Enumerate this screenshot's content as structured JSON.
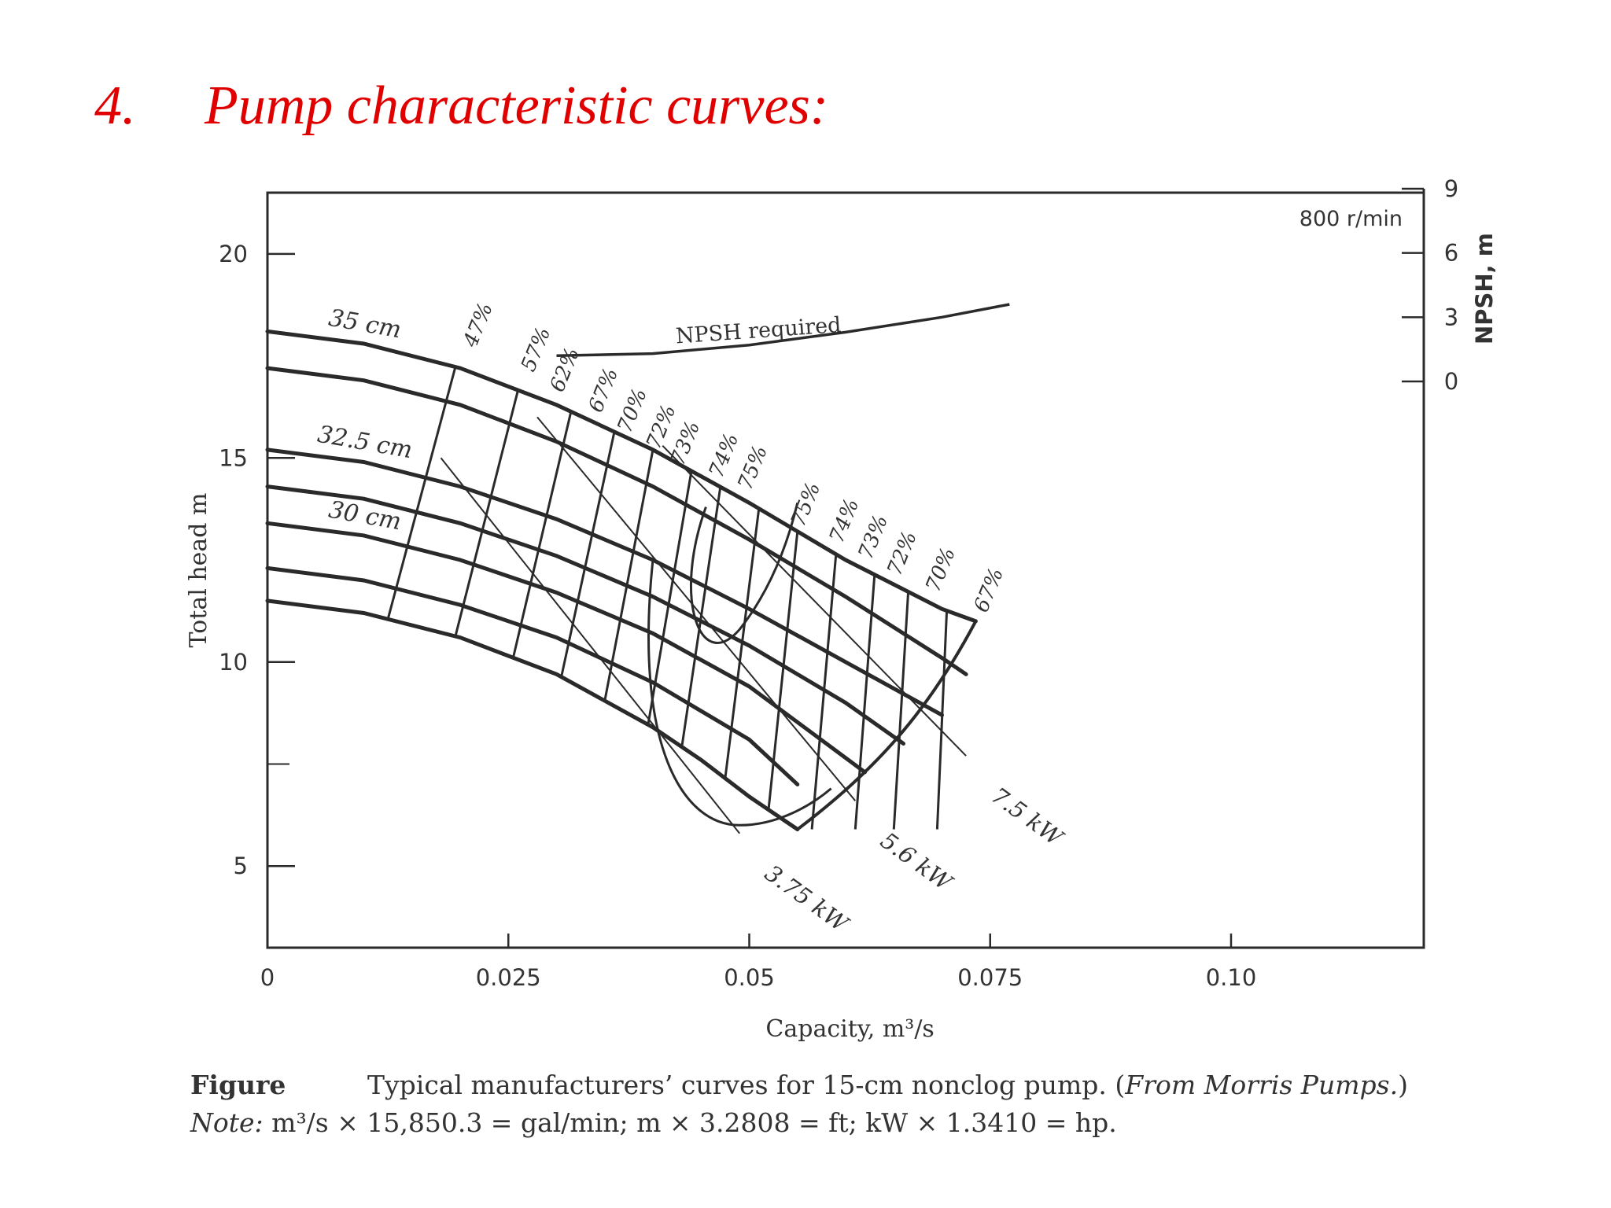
{
  "slide_title": {
    "number": "4.",
    "text": "Pump characteristic curves:"
  },
  "caption": {
    "figure_label": "Figure",
    "line1_text": "Typical manufacturers’ curves for 15-cm nonclog pump. (",
    "line1_source": "From Morris Pumps.",
    "line1_end": ")",
    "note_label": "Note:",
    "note_text": "m³/s × 15,850.3 = gal/min; m × 3.2808 = ft; kW × 1.3410 = hp."
  },
  "chart_data": {
    "type": "line",
    "xlabel": "Capacity, m³/s",
    "ylabel": "Total head  m",
    "y2label": "NPSH, m",
    "speed_label": "800 r/min",
    "xlim": [
      0,
      0.12
    ],
    "ylim": [
      3,
      21.5
    ],
    "y2lim": [
      0,
      9
    ],
    "x_ticks": [
      {
        "value": 0,
        "label": "0"
      },
      {
        "value": 0.025,
        "label": "0.025"
      },
      {
        "value": 0.05,
        "label": "0.05"
      },
      {
        "value": 0.075,
        "label": "0.075"
      },
      {
        "value": 0.1,
        "label": "0.10"
      }
    ],
    "y_ticks": [
      {
        "value": 5,
        "label": "5"
      },
      {
        "value": 10,
        "label": "10"
      },
      {
        "value": 15,
        "label": "15"
      },
      {
        "value": 20,
        "label": "20"
      }
    ],
    "y2_ticks": [
      {
        "value": 0,
        "label": "0"
      },
      {
        "value": 3,
        "label": "3"
      },
      {
        "value": 6,
        "label": "6"
      },
      {
        "value": 9,
        "label": "9"
      }
    ],
    "impeller_curves": [
      {
        "label": "35 cm",
        "x": [
          0,
          0.01,
          0.02,
          0.03,
          0.04,
          0.05,
          0.06,
          0.07,
          0.0735
        ],
        "y": [
          18.1,
          17.8,
          17.2,
          16.3,
          15.2,
          13.9,
          12.5,
          11.3,
          11.0
        ]
      },
      {
        "label": "",
        "x": [
          0,
          0.01,
          0.02,
          0.03,
          0.04,
          0.05,
          0.06,
          0.07,
          0.0725
        ],
        "y": [
          17.2,
          16.9,
          16.3,
          15.4,
          14.3,
          13.0,
          11.6,
          10.1,
          9.7
        ]
      },
      {
        "label": "32.5 cm",
        "x": [
          0,
          0.01,
          0.02,
          0.03,
          0.04,
          0.05,
          0.06,
          0.07
        ],
        "y": [
          15.2,
          14.9,
          14.3,
          13.5,
          12.5,
          11.3,
          10.0,
          8.7
        ]
      },
      {
        "label": "",
        "x": [
          0,
          0.01,
          0.02,
          0.03,
          0.04,
          0.05,
          0.06,
          0.066
        ],
        "y": [
          14.3,
          14.0,
          13.4,
          12.6,
          11.6,
          10.4,
          9.0,
          8.0
        ]
      },
      {
        "label": "30 cm",
        "x": [
          0,
          0.01,
          0.02,
          0.03,
          0.04,
          0.05,
          0.058,
          0.062
        ],
        "y": [
          13.4,
          13.1,
          12.5,
          11.7,
          10.7,
          9.4,
          8.0,
          7.3
        ]
      },
      {
        "label": "",
        "x": [
          0,
          0.01,
          0.02,
          0.03,
          0.04,
          0.05,
          0.055
        ],
        "y": [
          12.3,
          12.0,
          11.4,
          10.6,
          9.5,
          8.1,
          7.0
        ]
      },
      {
        "label": "",
        "x": [
          0,
          0.01,
          0.02,
          0.03,
          0.04,
          0.045,
          0.05,
          0.055
        ],
        "y": [
          11.5,
          11.2,
          10.6,
          9.7,
          8.4,
          7.6,
          6.7,
          5.9
        ]
      }
    ],
    "npsh_required": {
      "label": "NPSH required",
      "x": [
        0.03,
        0.04,
        0.05,
        0.06,
        0.07,
        0.077
      ],
      "y2": [
        1.2,
        1.3,
        1.7,
        2.3,
        3.0,
        3.6
      ]
    },
    "efficiency_labels": [
      "47%",
      "57%",
      "62%",
      "67%",
      "70%",
      "72%",
      "73%",
      "74%",
      "75%",
      "75%",
      "74%",
      "73%",
      "72%",
      "70%",
      "67%"
    ],
    "power_lines": [
      {
        "label": "3.75 kW",
        "x": [
          0.018,
          0.049
        ],
        "y": [
          15.0,
          5.8
        ]
      },
      {
        "label": "5.6 kW",
        "x": [
          0.028,
          0.061
        ],
        "y": [
          16.0,
          6.6
        ]
      },
      {
        "label": "7.5 kW",
        "x": [
          0.041,
          0.0725
        ],
        "y": [
          15.3,
          7.7
        ]
      }
    ]
  }
}
